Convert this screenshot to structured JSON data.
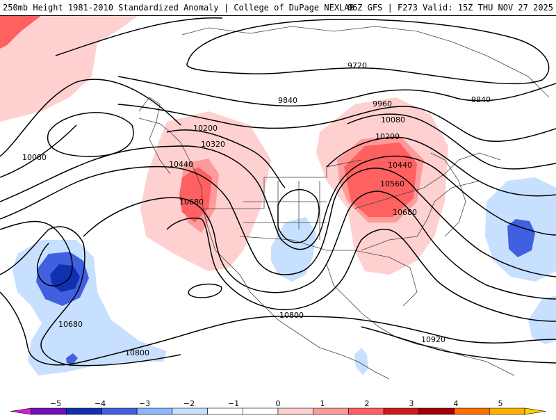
{
  "header": {
    "left": "250mb Height 1981-2010 Standardized Anomaly | College of DuPage NEXLAB",
    "right": "06Z GFS | F273 Valid: 15Z THU NOV 27 2025"
  },
  "contour_labels": {
    "c9720": "9720",
    "c9840_a": "9840",
    "c9840_b": "9840",
    "c9960": "9960",
    "c10080_a": "10080",
    "c10080_b": "10080",
    "c10200_a": "10200",
    "c10200_b": "10200",
    "c10320": "10320",
    "c10440_a": "10440",
    "c10440_b": "10440",
    "c10560": "10560",
    "c10680_a": "10680",
    "c10680_b": "10680",
    "c10680_c": "10680",
    "c10800_a": "10800",
    "c10800_b": "10800",
    "c10920": "10920"
  },
  "colorbar": {
    "ticks": [
      "−5",
      "−4",
      "−3",
      "−2",
      "−1",
      "0",
      "1",
      "2",
      "3",
      "4",
      "5"
    ],
    "bins": [
      {
        "color": "#d020d0"
      },
      {
        "color": "#7010b8"
      },
      {
        "color": "#1030b0"
      },
      {
        "color": "#4060e0"
      },
      {
        "color": "#8cb8ff"
      },
      {
        "color": "#c8e0ff"
      },
      {
        "color": "#ffffff"
      },
      {
        "color": "#ffffff"
      },
      {
        "color": "#ffd0d0"
      },
      {
        "color": "#ff9a9a"
      },
      {
        "color": "#ff6060"
      },
      {
        "color": "#d01818"
      },
      {
        "color": "#a00000"
      },
      {
        "color": "#ff7000"
      },
      {
        "color": "#ffb000"
      },
      {
        "color": "#ffd000"
      }
    ]
  },
  "colors": {
    "anomaly_pos_1": "#ffd0d0",
    "anomaly_pos_2": "#ff9a9a",
    "anomaly_pos_3": "#ff6060",
    "anomaly_neg_1": "#c8e0ff",
    "anomaly_neg_2": "#4060e0",
    "anomaly_neg_3": "#1030b0"
  }
}
